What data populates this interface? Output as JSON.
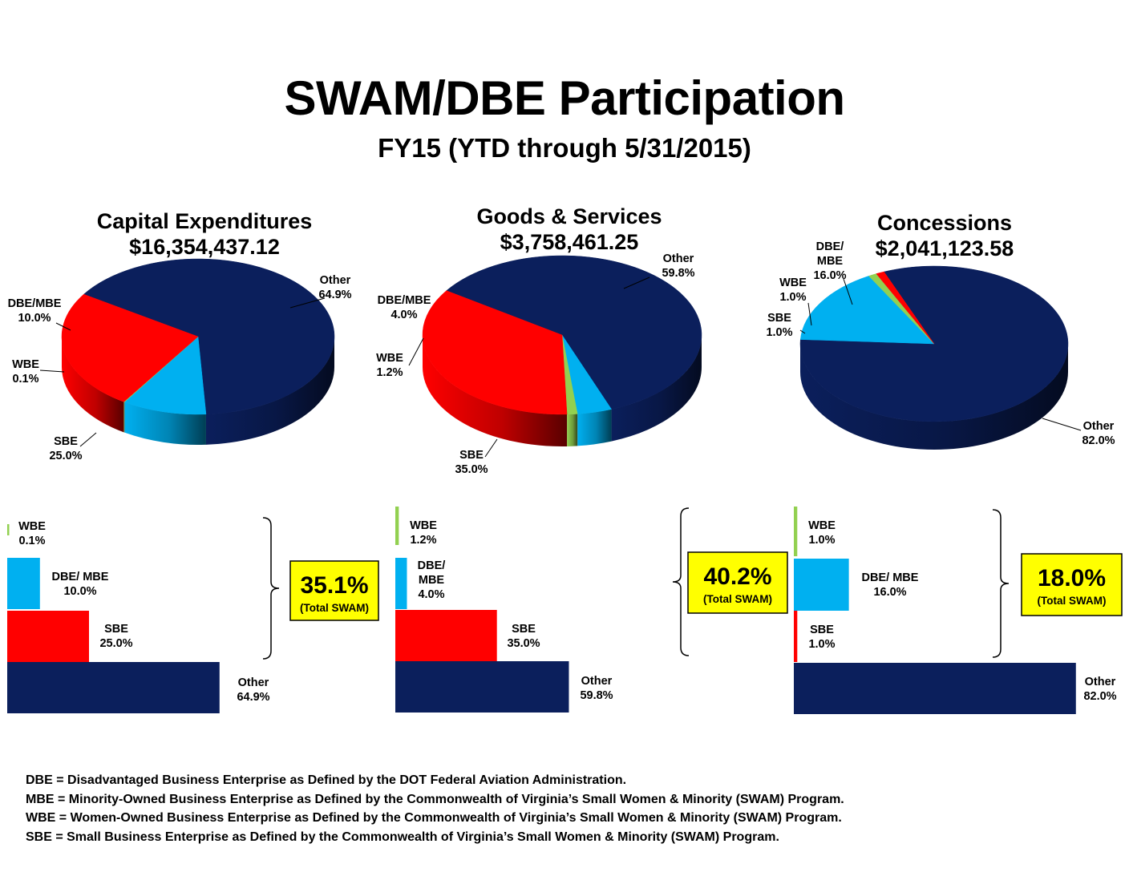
{
  "title": "SWAM/DBE Participation",
  "subtitle": "FY15 (YTD through 5/31/2015)",
  "colors": {
    "Other": "#0b1f5c",
    "DBE/MBE": "#00b0f0",
    "WBE": "#92d050",
    "SBE": "#ff0000",
    "callout_bg": "#ffff00"
  },
  "chart_data": [
    {
      "type": "pie",
      "title": "Capital Expenditures",
      "subtitle": "$16,354,437.12",
      "slices": [
        {
          "name": "Other",
          "value": 64.9,
          "label": "Other",
          "pct": "64.9%"
        },
        {
          "name": "DBE/MBE",
          "value": 10.0,
          "label": "DBE/MBE",
          "pct": "10.0%"
        },
        {
          "name": "WBE",
          "value": 0.1,
          "label": "WBE",
          "pct": "0.1%"
        },
        {
          "name": "SBE",
          "value": 25.0,
          "label": "SBE",
          "pct": "25.0%"
        }
      ]
    },
    {
      "type": "pie",
      "title": "Goods & Services",
      "subtitle": "$3,758,461.25",
      "slices": [
        {
          "name": "Other",
          "value": 59.8,
          "label": "Other",
          "pct": "59.8%"
        },
        {
          "name": "DBE/MBE",
          "value": 4.0,
          "label": "DBE/MBE",
          "pct": "4.0%"
        },
        {
          "name": "WBE",
          "value": 1.2,
          "label": "WBE",
          "pct": "1.2%"
        },
        {
          "name": "SBE",
          "value": 35.0,
          "label": "SBE",
          "pct": "35.0%"
        }
      ]
    },
    {
      "type": "pie",
      "title": "Concessions",
      "subtitle": "$2,041,123.58",
      "slices": [
        {
          "name": "Other",
          "value": 82.0,
          "label": "Other",
          "pct": "82.0%"
        },
        {
          "name": "DBE/MBE",
          "value": 16.0,
          "label": "DBE/\nMBE",
          "pct": "16.0%"
        },
        {
          "name": "WBE",
          "value": 1.0,
          "label": "WBE",
          "pct": "1.0%"
        },
        {
          "name": "SBE",
          "value": 1.0,
          "label": "SBE",
          "pct": "1.0%"
        }
      ]
    },
    {
      "type": "bar",
      "orientation": "horizontal",
      "categories": [
        "WBE",
        "DBE/ MBE",
        "SBE",
        "Other"
      ],
      "values": [
        0.1,
        10.0,
        25.0,
        64.9
      ],
      "labels": [
        "WBE\n0.1%",
        "DBE/ MBE\n10.0%",
        "SBE\n25.0%",
        "Other\n64.9%"
      ],
      "callout": {
        "value": "35.1%",
        "note": "(Total SWAM)"
      }
    },
    {
      "type": "bar",
      "orientation": "horizontal",
      "categories": [
        "WBE",
        "DBE/ MBE",
        "SBE",
        "Other"
      ],
      "values": [
        1.2,
        4.0,
        35.0,
        59.8
      ],
      "labels": [
        "WBE\n1.2%",
        "DBE/\nMBE\n4.0%",
        "SBE\n35.0%",
        "Other\n59.8%"
      ],
      "callout": {
        "value": "40.2%",
        "note": "(Total SWAM)"
      }
    },
    {
      "type": "bar",
      "orientation": "horizontal",
      "categories": [
        "WBE",
        "DBE/ MBE",
        "SBE",
        "Other"
      ],
      "values": [
        1.0,
        16.0,
        1.0,
        82.0
      ],
      "labels": [
        "WBE\n1.0%",
        "DBE/ MBE\n16.0%",
        "SBE\n1.0%",
        "Other\n82.0%"
      ],
      "callout": {
        "value": "18.0%",
        "note": "(Total SWAM)"
      }
    }
  ],
  "footnotes": [
    "DBE = Disadvantaged Business Enterprise as Defined by the DOT Federal Aviation Administration.",
    "MBE = Minority-Owned Business Enterprise as Defined by the Commonwealth of Virginia’s Small Women & Minority (SWAM) Program.",
    "WBE = Women-Owned Business Enterprise as Defined by the Commonwealth of Virginia’s Small Women & Minority (SWAM) Program.",
    "SBE = Small Business Enterprise as Defined by the Commonwealth of Virginia’s Small Women & Minority (SWAM) Program."
  ]
}
